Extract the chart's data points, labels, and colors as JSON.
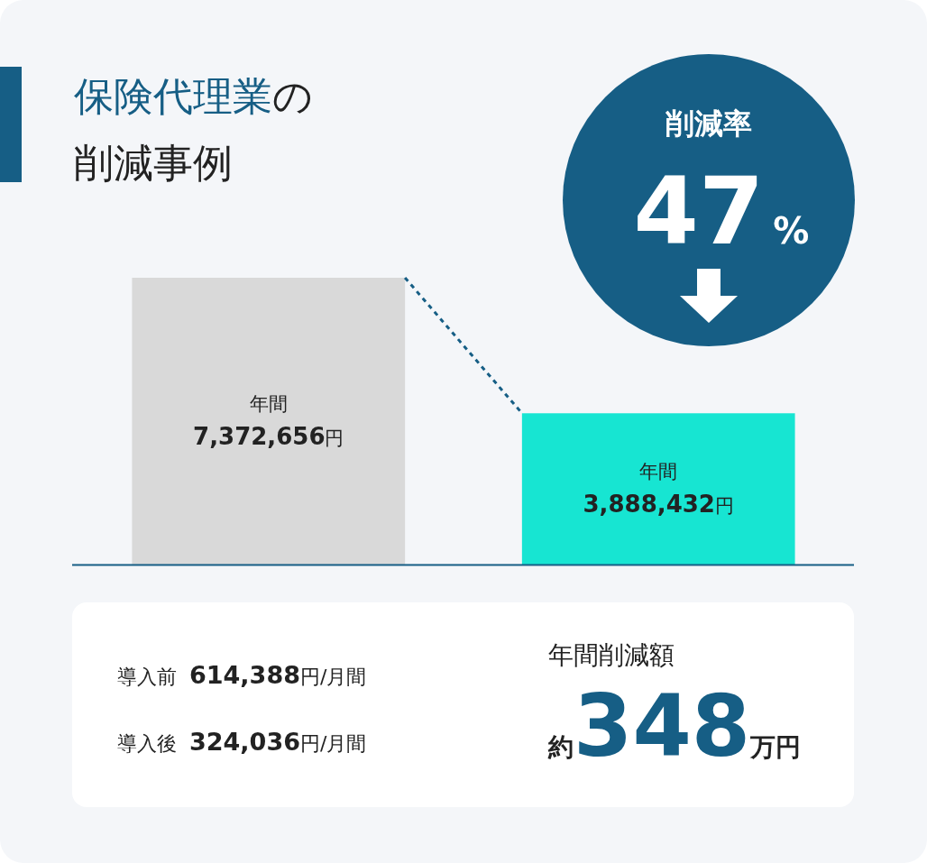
{
  "chart_data": {
    "type": "bar",
    "title": "保険代理業の削減事例",
    "categories": [
      null,
      null
    ],
    "values": [
      7372656,
      3888432
    ],
    "colors": [
      "#d9d9d9",
      "#17e5d2"
    ],
    "value_labels": [
      "年間 7,372,656円",
      "年間 3,888,432円"
    ],
    "annotations": [
      "削減率",
      "47%",
      "導入前 614,388円/月間",
      "導入後 324,036円/月間",
      "年間削減額",
      "約348万円"
    ]
  }
}
